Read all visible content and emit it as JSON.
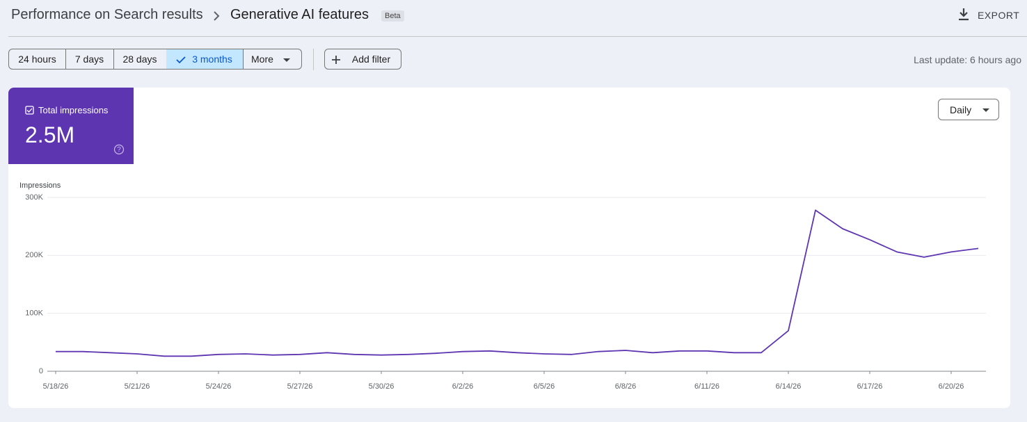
{
  "header": {
    "breadcrumb": "Performance on Search results",
    "title": "Generative AI features",
    "badge": "Beta",
    "export": "EXPORT"
  },
  "filters": {
    "ranges": [
      "24 hours",
      "7 days",
      "28 days",
      "3 months"
    ],
    "more": "More",
    "add_filter": "Add filter",
    "last_update": "Last update: 6 hours ago"
  },
  "metric": {
    "label": "Total impressions",
    "value": "2.5M"
  },
  "granularity": "Daily",
  "chart_data": {
    "type": "line",
    "y_label": "Impressions",
    "color": "#5e35b1",
    "x": [
      "5/18/26",
      "5/19/26",
      "5/20/26",
      "5/21/26",
      "5/22/26",
      "5/23/26",
      "5/24/26",
      "5/25/26",
      "5/26/26",
      "5/27/26",
      "5/28/26",
      "5/29/26",
      "5/30/26",
      "5/31/26",
      "6/1/26",
      "6/2/26",
      "6/3/26",
      "6/4/26",
      "6/5/26",
      "6/6/26",
      "6/7/26",
      "6/8/26",
      "6/9/26",
      "6/10/26",
      "6/11/26",
      "6/12/26",
      "6/13/26",
      "6/14/26",
      "6/15/26",
      "6/16/26",
      "6/17/26",
      "6/18/26",
      "6/19/26",
      "6/20/26",
      "6/21/26"
    ],
    "values": [
      34000,
      34000,
      32000,
      30000,
      26000,
      26000,
      29000,
      30000,
      28000,
      29000,
      32000,
      29000,
      28000,
      29000,
      31000,
      34000,
      35000,
      32000,
      30000,
      29000,
      34000,
      36000,
      32000,
      35000,
      35000,
      32000,
      32000,
      70000,
      278000,
      246000,
      227000,
      206000,
      197000,
      206000,
      212000
    ],
    "xticks": [
      "5/18/26",
      "5/21/26",
      "5/24/26",
      "5/27/26",
      "5/30/26",
      "6/2/26",
      "6/5/26",
      "6/8/26",
      "6/11/26",
      "6/14/26",
      "6/17/26",
      "6/20/26"
    ],
    "ylim": [
      0,
      300000
    ],
    "yticks": [
      0,
      {
        "value": 100000,
        "label": "100K"
      },
      {
        "value": 200000,
        "label": "200K"
      },
      {
        "value": 300000,
        "label": "300K"
      }
    ],
    "grid": true
  }
}
